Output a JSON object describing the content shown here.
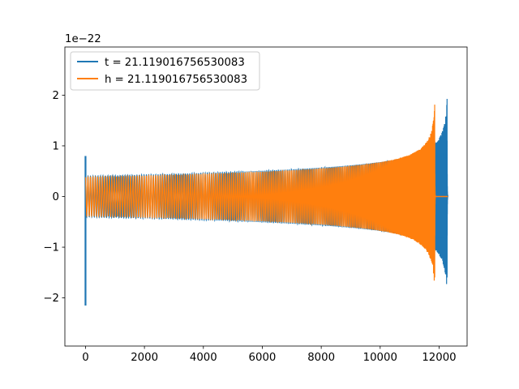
{
  "chart_data": {
    "type": "line",
    "title": "",
    "xlabel": "",
    "ylabel": "",
    "y_offset_label": "1e−22",
    "xlim": [
      -700,
      12950
    ],
    "ylim": [
      -2.95,
      2.95
    ],
    "x_ticks": [
      0,
      2000,
      4000,
      6000,
      8000,
      10000,
      12000
    ],
    "x_tick_labels": [
      "0",
      "2000",
      "4000",
      "6000",
      "8000",
      "10000",
      "12000"
    ],
    "y_ticks": [
      -2,
      -1,
      0,
      1,
      2
    ],
    "y_tick_labels": [
      "−2",
      "−1",
      "0",
      "1",
      "2"
    ],
    "grid": false,
    "legend_position": "top-left",
    "series": [
      {
        "name": "t = 21.119016756530083",
        "color": "#1f77b4",
        "shape": {
          "start": 0,
          "end": 12300,
          "amp_start": 0.4,
          "amp_peak": 2.6,
          "merger": 12270,
          "ringdown_end": 12300,
          "start_spike": {
            "x": 0,
            "low": -2.15,
            "high": 0.8
          },
          "cycles": 140
        }
      },
      {
        "name": "h = 21.119016756530083",
        "color": "#ff7f0e",
        "shape": {
          "start": 0,
          "end": 12300,
          "amp_start": 0.38,
          "amp_peak": 2.6,
          "merger": 11850,
          "ringdown_end": 11880,
          "cycles": 140
        }
      }
    ]
  }
}
